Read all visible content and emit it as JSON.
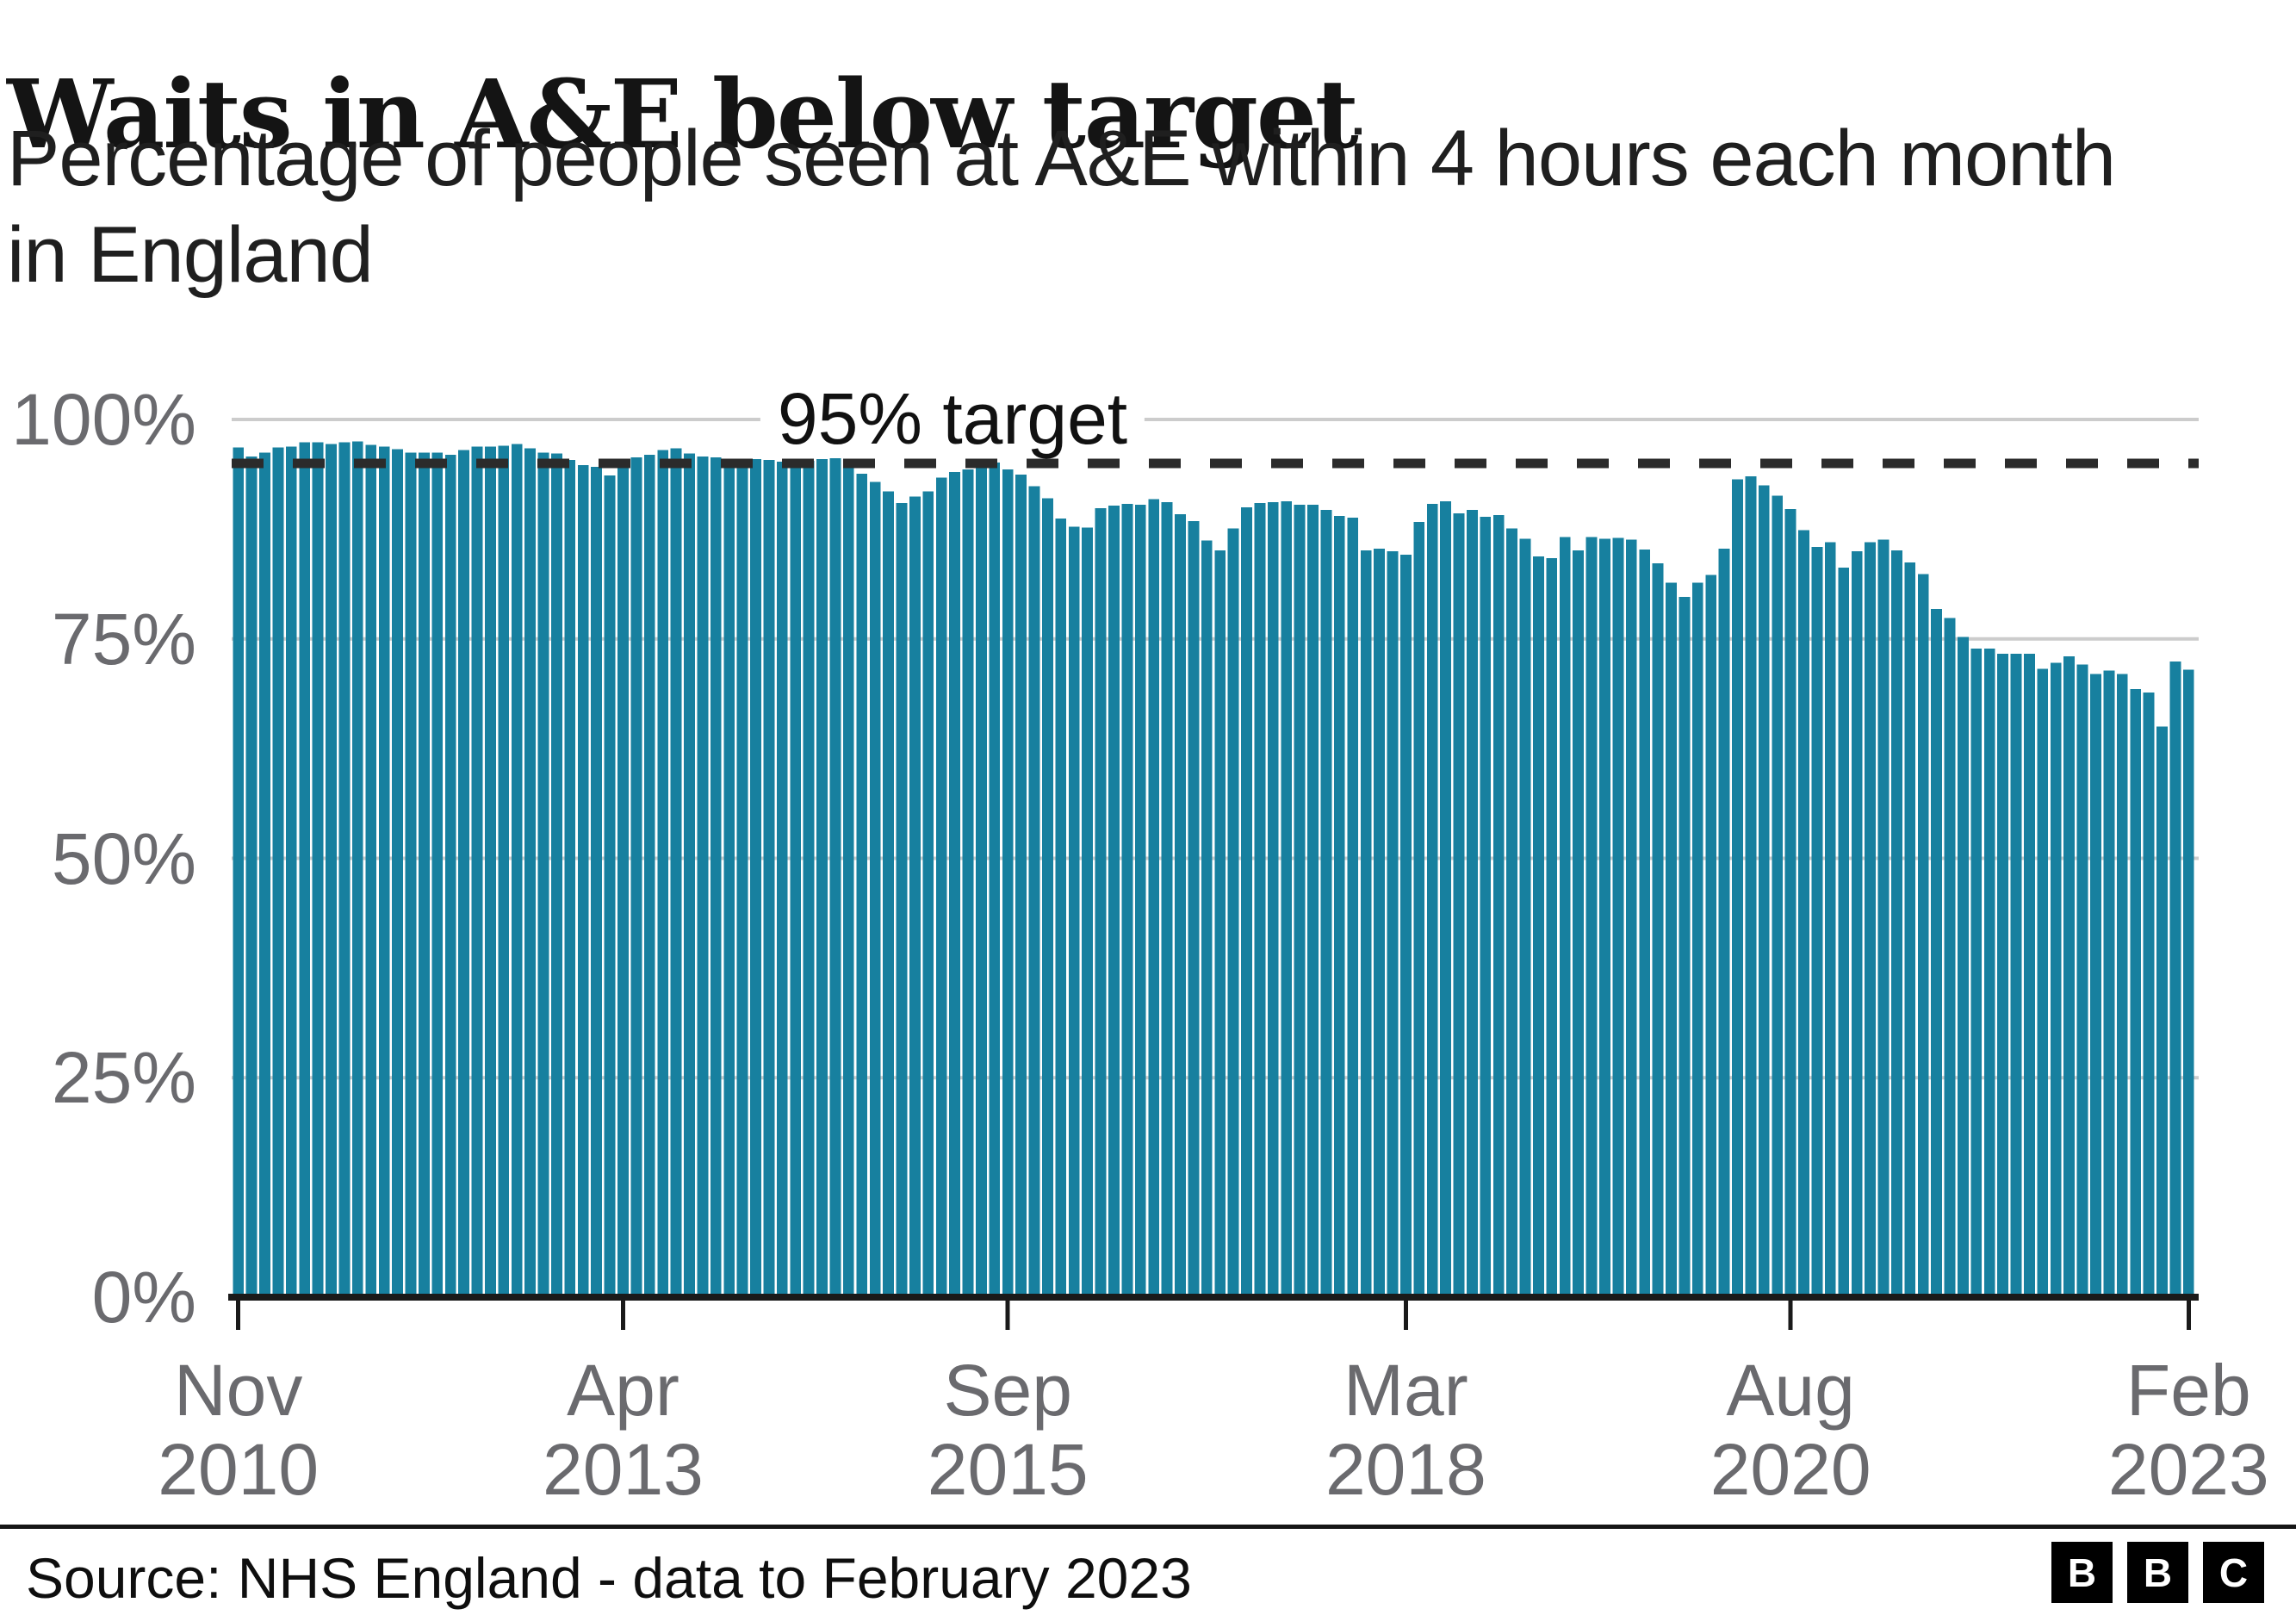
{
  "header": {
    "title": "Waits in A&E below target",
    "subtitle_line1": "Percentage of people seen at A&E within 4 hours each month",
    "subtitle_line2": "in England"
  },
  "footer": {
    "source": "Source: NHS England - data to February 2023",
    "logo_letters": [
      "B",
      "B",
      "C"
    ]
  },
  "colors": {
    "bar": "#17809f",
    "target_line": "#2b2b2b",
    "grid": "#cccccc",
    "axis": "#1a1a1a",
    "tick_label": "#6a6a6e"
  },
  "chart_data": {
    "type": "bar",
    "title": "Waits in A&E below target",
    "xlabel": "",
    "ylabel": "",
    "ylim": [
      0,
      100
    ],
    "grid": "horizontal",
    "legend": "none",
    "start_month": "Nov 2010",
    "end_month": "Feb 2023",
    "target_line": {
      "value": 95,
      "label": "95% target",
      "style": "dashed",
      "color": "#2b2b2b"
    },
    "yticks": [
      {
        "value": 100,
        "label": "100%"
      },
      {
        "value": 75,
        "label": "75%"
      },
      {
        "value": 50,
        "label": "50%"
      },
      {
        "value": 25,
        "label": "25%"
      },
      {
        "value": 0,
        "label": "0%"
      }
    ],
    "xticks": [
      {
        "index": 0,
        "month": "Nov",
        "year": "2010"
      },
      {
        "index": 29,
        "month": "Apr",
        "year": "2013"
      },
      {
        "index": 58,
        "month": "Sep",
        "year": "2015"
      },
      {
        "index": 88,
        "month": "Mar",
        "year": "2018"
      },
      {
        "index": 117,
        "month": "Aug",
        "year": "2020"
      },
      {
        "index": 147,
        "month": "Feb",
        "year": "2023"
      }
    ],
    "series": [
      {
        "name": "Percentage of people seen at A&E within 4 hours",
        "values": [
          96.8,
          95.8,
          96.2,
          96.8,
          96.9,
          97.4,
          97.4,
          97.2,
          97.4,
          97.5,
          97.1,
          96.9,
          96.6,
          96.2,
          96.2,
          96.2,
          96.0,
          96.5,
          96.9,
          96.9,
          97.0,
          97.2,
          96.7,
          96.2,
          96.1,
          95.4,
          94.8,
          94.6,
          93.6,
          94.9,
          95.7,
          96.0,
          96.5,
          96.7,
          96.1,
          95.8,
          95.7,
          95.3,
          95.4,
          95.5,
          95.4,
          95.2,
          95.3,
          95.3,
          95.5,
          95.6,
          94.8,
          93.8,
          92.9,
          91.8,
          90.5,
          91.2,
          91.8,
          93.4,
          94.0,
          94.3,
          94.8,
          95.1,
          94.3,
          93.7,
          92.4,
          91.0,
          88.7,
          87.8,
          87.7,
          89.9,
          90.2,
          90.4,
          90.3,
          90.9,
          90.6,
          89.2,
          88.4,
          86.2,
          85.1,
          87.6,
          90.0,
          90.5,
          90.6,
          90.7,
          90.3,
          90.3,
          89.7,
          89.0,
          88.8,
          85.1,
          85.3,
          85.0,
          84.6,
          88.3,
          90.4,
          90.7,
          89.3,
          89.7,
          88.9,
          89.1,
          87.6,
          86.4,
          84.4,
          84.2,
          86.6,
          85.1,
          86.6,
          86.4,
          86.5,
          86.3,
          85.2,
          83.6,
          81.4,
          79.8,
          81.4,
          82.3,
          85.3,
          93.2,
          93.5,
          92.5,
          91.3,
          89.8,
          87.4,
          85.5,
          86.0,
          83.1,
          85.0,
          86.0,
          86.3,
          85.1,
          83.7,
          82.4,
          78.4,
          77.4,
          75.2,
          73.9,
          73.9,
          73.3,
          73.3,
          73.3,
          71.6,
          72.3,
          73.0,
          72.1,
          71.0,
          71.4,
          71.0,
          69.3,
          68.9,
          65.0,
          72.4,
          71.5
        ]
      }
    ]
  }
}
